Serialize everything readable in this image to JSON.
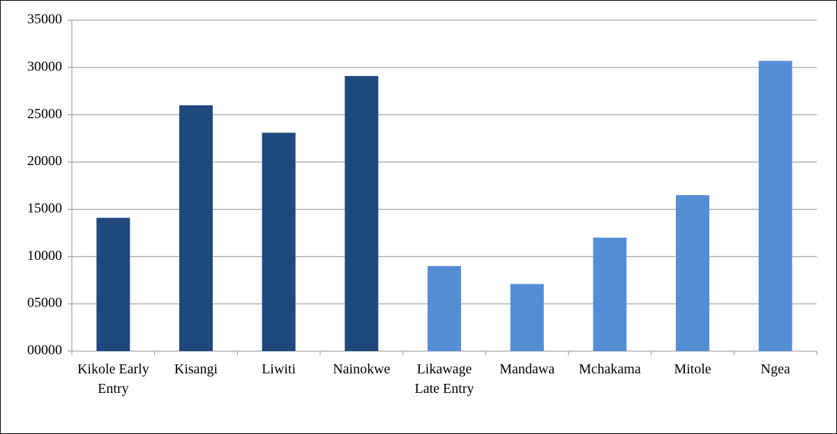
{
  "chart_data": {
    "type": "bar",
    "categories": [
      "Kikole Early Entry",
      "Kisangi",
      "Liwiti",
      "Nainokwe",
      "Likawage Late Entry",
      "Mandawa",
      "Mchakama",
      "Mitole",
      "Ngea"
    ],
    "values": [
      14100,
      26000,
      23100,
      29100,
      9000,
      7100,
      12000,
      16500,
      30700
    ],
    "colors": [
      "#1f497d",
      "#1f497d",
      "#1f497d",
      "#1f497d",
      "#558ed5",
      "#558ed5",
      "#558ed5",
      "#558ed5",
      "#558ed5"
    ],
    "ylim": [
      0,
      35000
    ],
    "yticks": [
      {
        "value": 0,
        "label": "00000"
      },
      {
        "value": 5000,
        "label": "05000"
      },
      10000,
      15000,
      20000,
      25000,
      30000,
      35000
    ],
    "grid": true
  }
}
